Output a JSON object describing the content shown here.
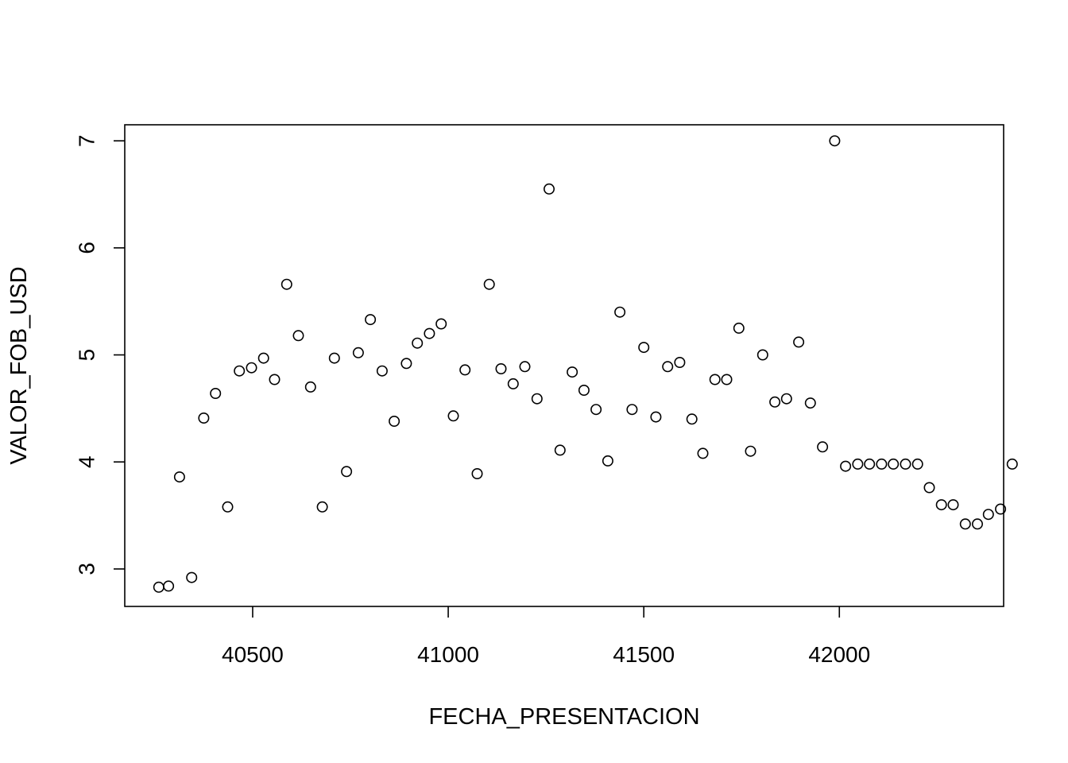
{
  "chart_data": {
    "type": "scatter",
    "title": "",
    "xlabel": "FECHA_PRESENTACION",
    "ylabel": "VALOR_FOB_USD",
    "xlim": [
      40173,
      42420
    ],
    "ylim": [
      2.65,
      7.15
    ],
    "xticks": [
      40500,
      41000,
      41500,
      42000
    ],
    "yticks": [
      3,
      4,
      5,
      6,
      7
    ],
    "grid": false,
    "legend": "none",
    "marker": "open-circle",
    "colors": {
      "marker": "#000000",
      "axis": "#000000",
      "background": "#ffffff"
    },
    "series": [
      {
        "points": [
          [
            40260,
            2.83
          ],
          [
            40285,
            2.84
          ],
          [
            40313,
            3.86
          ],
          [
            40344,
            2.92
          ],
          [
            40375,
            4.41
          ],
          [
            40405,
            4.64
          ],
          [
            40436,
            3.58
          ],
          [
            40466,
            4.85
          ],
          [
            40497,
            4.88
          ],
          [
            40528,
            4.97
          ],
          [
            40556,
            4.77
          ],
          [
            40587,
            5.66
          ],
          [
            40617,
            5.18
          ],
          [
            40648,
            4.7
          ],
          [
            40678,
            3.58
          ],
          [
            40709,
            4.97
          ],
          [
            40740,
            3.91
          ],
          [
            40770,
            5.02
          ],
          [
            40801,
            5.33
          ],
          [
            40831,
            4.85
          ],
          [
            40862,
            4.38
          ],
          [
            40893,
            4.92
          ],
          [
            40921,
            5.11
          ],
          [
            40952,
            5.2
          ],
          [
            40982,
            5.29
          ],
          [
            41013,
            4.43
          ],
          [
            41043,
            4.86
          ],
          [
            41074,
            3.89
          ],
          [
            41105,
            5.66
          ],
          [
            41135,
            4.87
          ],
          [
            41166,
            4.73
          ],
          [
            41196,
            4.89
          ],
          [
            41227,
            4.59
          ],
          [
            41258,
            6.55
          ],
          [
            41286,
            4.11
          ],
          [
            41317,
            4.84
          ],
          [
            41347,
            4.67
          ],
          [
            41378,
            4.49
          ],
          [
            41408,
            4.01
          ],
          [
            41439,
            5.4
          ],
          [
            41470,
            4.49
          ],
          [
            41500,
            5.07
          ],
          [
            41531,
            4.42
          ],
          [
            41561,
            4.89
          ],
          [
            41592,
            4.93
          ],
          [
            41623,
            4.4
          ],
          [
            41651,
            4.08
          ],
          [
            41682,
            4.77
          ],
          [
            41712,
            4.77
          ],
          [
            41743,
            5.25
          ],
          [
            41773,
            4.1
          ],
          [
            41804,
            5.0
          ],
          [
            41835,
            4.56
          ],
          [
            41865,
            4.59
          ],
          [
            41896,
            5.12
          ],
          [
            41926,
            4.55
          ],
          [
            41957,
            4.14
          ],
          [
            41988,
            7.0
          ],
          [
            42016,
            3.96
          ],
          [
            42047,
            3.98
          ],
          [
            42077,
            3.98
          ],
          [
            42108,
            3.98
          ],
          [
            42138,
            3.98
          ],
          [
            42169,
            3.98
          ],
          [
            42200,
            3.98
          ],
          [
            42230,
            3.76
          ],
          [
            42261,
            3.6
          ],
          [
            42291,
            3.6
          ],
          [
            42322,
            3.42
          ],
          [
            42353,
            3.42
          ],
          [
            42381,
            3.51
          ],
          [
            42412,
            3.56
          ],
          [
            42442,
            3.98
          ]
        ]
      }
    ]
  }
}
